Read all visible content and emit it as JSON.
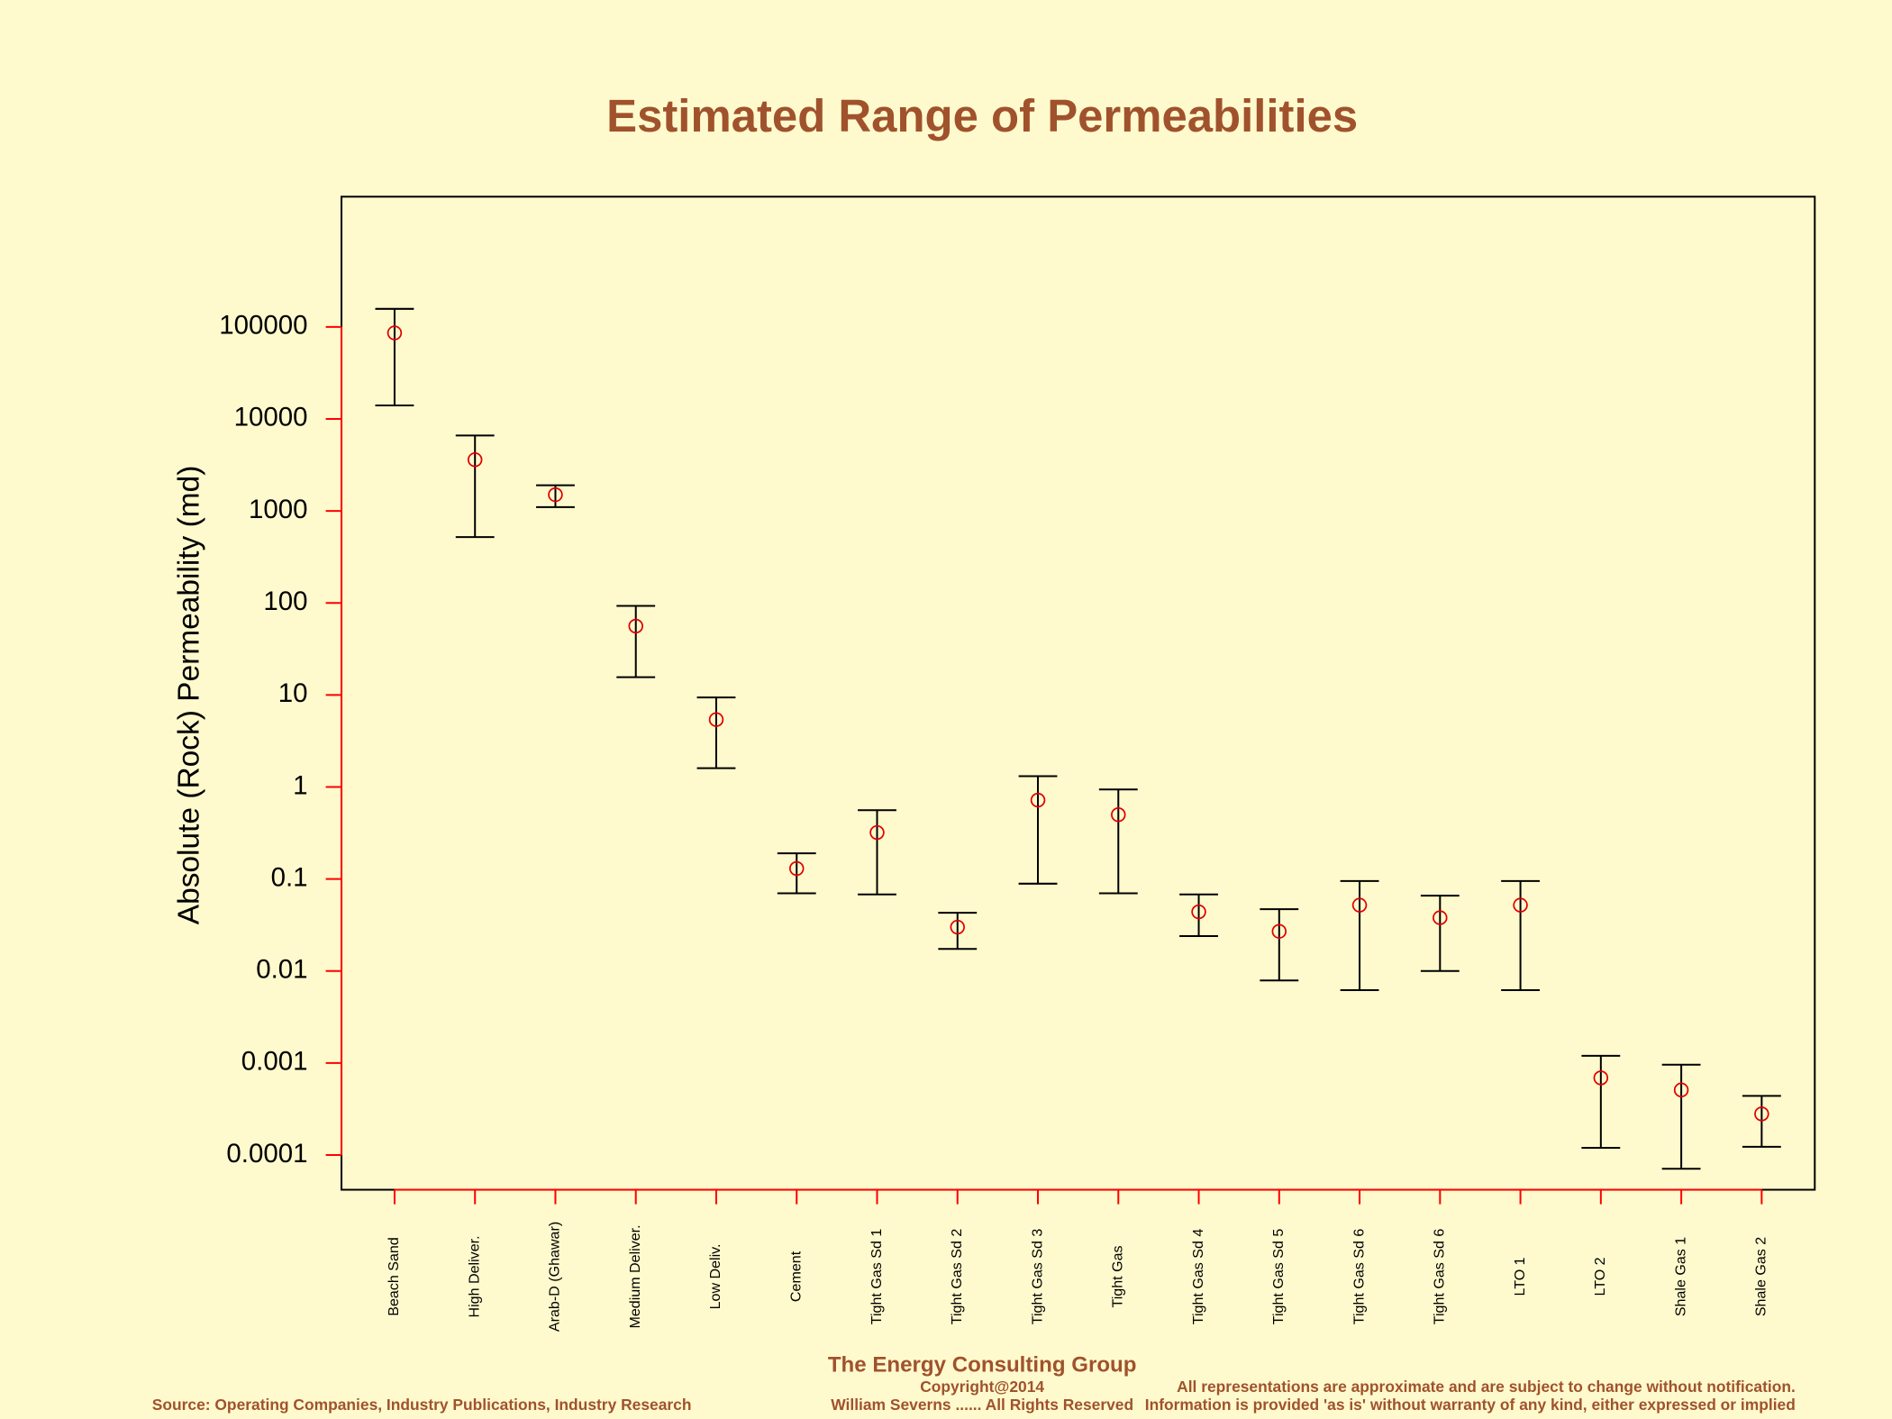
{
  "chart_data": {
    "type": "errorbar",
    "title": "Estimated Range of Permeabilities",
    "y_label": "Absolute (Rock) Permeability (md)",
    "log_y": true,
    "categories": [
      "Beach Sand",
      "High Deliver.",
      "Arab-D (Ghawar)",
      "Medium Deliver.",
      "Low Deliv.",
      "Cement",
      "Tight Gas Sd 1",
      "Tight Gas Sd 2",
      "Tight Gas Sd 3",
      "Tight Gas",
      "Tight Gas Sd 4",
      "Tight Gas Sd 5",
      "Tight Gas Sd 6",
      "Tight Gas Sd 6",
      "LTO 1",
      "LTO 2",
      "Shale Gas 1",
      "Shale Gas 2"
    ],
    "values": [
      86000,
      3600,
      1500,
      56,
      5.4,
      0.13,
      0.32,
      0.03,
      0.72,
      0.5,
      0.044,
      0.027,
      0.052,
      0.038,
      0.052,
      0.00069,
      0.00051,
      0.00028
    ],
    "low": [
      14000,
      520,
      1100,
      15.6,
      1.6,
      0.07,
      0.068,
      0.0174,
      0.089,
      0.07,
      0.024,
      0.0079,
      0.0062,
      0.01,
      0.0062,
      0.00012,
      7.1e-05,
      0.000123
    ],
    "high": [
      157000,
      6600,
      1900,
      93,
      9.4,
      0.19,
      0.56,
      0.043,
      1.31,
      0.94,
      0.068,
      0.047,
      0.095,
      0.066,
      0.095,
      0.0012,
      0.00096,
      0.00044
    ],
    "point_color": "#e00000",
    "bar_color": "#000000",
    "axis_color": "#ff0000",
    "ylim": [
      4.2e-05,
      2600000
    ],
    "yticks": [
      100000,
      10000,
      1000,
      100,
      10,
      1,
      0.1,
      0.01,
      0.001,
      0.0001
    ],
    "footer": {
      "company": "The Energy Consulting Group",
      "copyright": "Copyright@2014",
      "author": "William Severns ...... All Rights Reserved",
      "disclaimer1": "All representations are approximate and are subject to change without notification.",
      "disclaimer2": "Information is provided 'as is' without warranty of any kind, either expressed or implied",
      "source": "Source: Operating Companies, Industry Publications, Industry Research"
    }
  }
}
